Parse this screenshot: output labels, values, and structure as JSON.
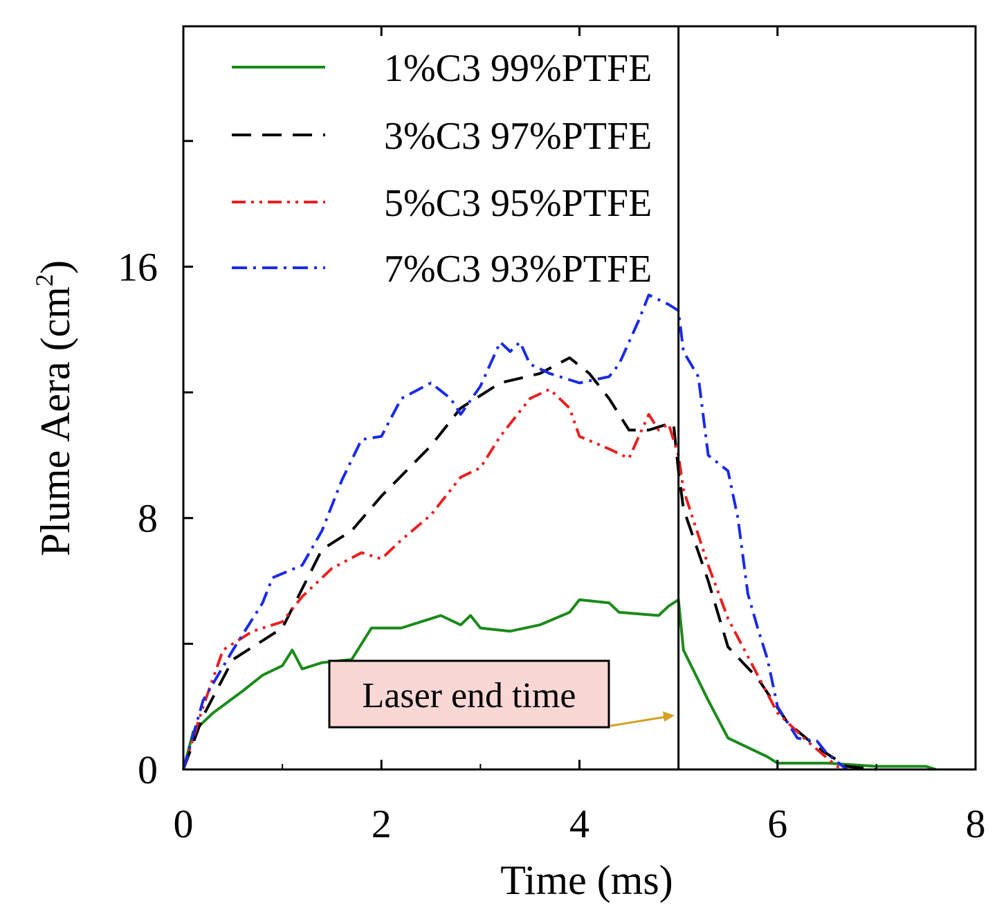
{
  "chart_data": {
    "type": "line",
    "title": "",
    "xlabel": "Time (ms)",
    "ylabel": "Plume Aera (cm",
    "ylabel_sup": "2",
    "ylabel_close": ")",
    "xlim": [
      0,
      8
    ],
    "ylim": [
      0,
      23.65
    ],
    "xticks": [
      0,
      2,
      4,
      6,
      8
    ],
    "xtick_labels": [
      "0",
      "2",
      "4",
      "6",
      "8"
    ],
    "yticks": [
      0,
      4,
      8,
      12,
      16,
      20
    ],
    "ytick_labels": [
      "0",
      "",
      "8",
      "",
      "16",
      ""
    ],
    "grid": false,
    "legend_placement": "top-left",
    "vline_x": 5,
    "annotation": {
      "text": "Laser end time",
      "arrow_to": [
        5,
        1.7
      ],
      "box_color": "#f8d7d4",
      "arrow_color": "#d4a020"
    },
    "series": [
      {
        "name": "1%C3 99%PTFE",
        "color": "#1a8a1a",
        "dash": "solid",
        "x": [
          0,
          0.1,
          0.3,
          0.6,
          0.8,
          1.0,
          1.1,
          1.2,
          1.4,
          1.7,
          1.9,
          2.2,
          2.6,
          2.8,
          2.9,
          3.0,
          3.3,
          3.6,
          3.9,
          4.0,
          4.3,
          4.4,
          4.8,
          4.9,
          5.0,
          5.05,
          5.3,
          5.5,
          5.7,
          5.9,
          6.0,
          6.5,
          7.0,
          7.5,
          7.6
        ],
        "y": [
          0,
          1.2,
          1.8,
          2.5,
          3.0,
          3.3,
          3.8,
          3.2,
          3.4,
          3.5,
          4.5,
          4.5,
          4.9,
          4.6,
          4.9,
          4.5,
          4.4,
          4.6,
          5.0,
          5.4,
          5.3,
          5.0,
          4.9,
          5.2,
          5.4,
          3.8,
          2.2,
          1.0,
          0.7,
          0.4,
          0.2,
          0.2,
          0.1,
          0.1,
          0
        ]
      },
      {
        "name": "3%C3 97%PTFE",
        "color": "#000000",
        "dash": "dash",
        "x": [
          0,
          0.2,
          0.5,
          1.0,
          1.4,
          1.7,
          2.0,
          2.5,
          2.8,
          3.2,
          3.6,
          3.9,
          4.1,
          4.3,
          4.5,
          4.7,
          4.9,
          4.95,
          5.0,
          5.05,
          5.3,
          5.5,
          5.8,
          6.1,
          6.4,
          6.7,
          7.0
        ],
        "y": [
          0,
          1.7,
          3.5,
          4.5,
          7.0,
          7.6,
          8.7,
          10.3,
          11.5,
          12.3,
          12.6,
          13.1,
          12.6,
          11.8,
          10.8,
          10.8,
          11.0,
          11.0,
          9.5,
          8.3,
          6.0,
          3.9,
          2.9,
          1.5,
          0.7,
          0.1,
          0
        ]
      },
      {
        "name": "5%C3 95%PTFE",
        "color": "#e82020",
        "dash": "dashdotdot",
        "x": [
          0,
          0.2,
          0.4,
          0.7,
          1.0,
          1.2,
          1.5,
          1.8,
          2.0,
          2.2,
          2.5,
          2.8,
          3.0,
          3.2,
          3.5,
          3.7,
          3.9,
          4.0,
          4.3,
          4.5,
          4.7,
          4.8,
          4.9,
          5.0,
          5.05,
          5.3,
          5.5,
          5.8,
          6.0,
          6.3,
          6.6,
          6.7
        ],
        "y": [
          0,
          2.0,
          3.8,
          4.4,
          4.7,
          5.5,
          6.4,
          6.9,
          6.7,
          7.3,
          8.1,
          9.3,
          9.6,
          10.6,
          11.8,
          12.1,
          11.5,
          10.6,
          10.2,
          9.9,
          11.3,
          10.8,
          11.0,
          10.0,
          8.9,
          6.5,
          4.8,
          3.0,
          1.8,
          0.9,
          0.1,
          0
        ]
      },
      {
        "name": "7%C3 93%PTFE",
        "color": "#1a2ae8",
        "dash": "dashdot",
        "x": [
          0,
          0.2,
          0.5,
          0.8,
          0.9,
          1.2,
          1.4,
          1.6,
          1.8,
          2.0,
          2.2,
          2.5,
          2.7,
          2.8,
          3.0,
          3.2,
          3.3,
          3.4,
          3.5,
          3.7,
          4.0,
          4.3,
          4.4,
          4.6,
          4.7,
          4.9,
          5.0,
          5.05,
          5.2,
          5.3,
          5.5,
          5.6,
          5.7,
          5.8,
          5.9,
          6.0,
          6.2,
          6.4,
          6.5,
          6.7
        ],
        "y": [
          0,
          2.2,
          3.8,
          5.3,
          6.1,
          6.5,
          7.6,
          9.2,
          10.5,
          10.6,
          11.8,
          12.3,
          11.8,
          11.3,
          12.2,
          13.6,
          13.3,
          13.6,
          12.9,
          12.6,
          12.3,
          12.5,
          12.9,
          14.3,
          15.1,
          14.8,
          14.6,
          13.3,
          12.5,
          10.0,
          9.5,
          8.0,
          5.6,
          4.5,
          3.5,
          2.0,
          1.0,
          0.9,
          0.5,
          0
        ]
      }
    ]
  }
}
